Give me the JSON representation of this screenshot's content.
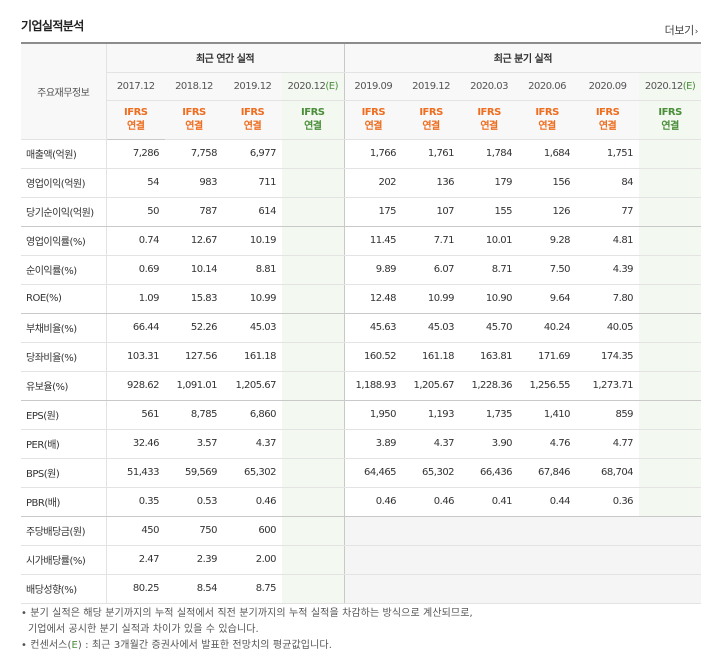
{
  "title": "기업실적분석",
  "more_label": "더보기",
  "more_arrow": "›",
  "header": {
    "row_label": "주요재무정보",
    "annual_group": "최근 연간 실적",
    "quarter_group": "최근 분기 실적",
    "annual_years": [
      "2017.12",
      "2018.12",
      "2019.12"
    ],
    "annual_est_year": "2020.12",
    "quarter_years": [
      "2019.09",
      "2019.12",
      "2020.03",
      "2020.06",
      "2020.09"
    ],
    "quarter_est_year": "2020.12",
    "est_mark": "(E)",
    "ifrs_top": "IFRS",
    "ifrs_bottom": "연결"
  },
  "rows": [
    {
      "label": "매출액(억원)",
      "annual": [
        "7,286",
        "7,758",
        "6,977",
        ""
      ],
      "quarter": [
        "1,766",
        "1,761",
        "1,784",
        "1,684",
        "1,751",
        ""
      ]
    },
    {
      "label": "영업이익(억원)",
      "annual": [
        "54",
        "983",
        "711",
        ""
      ],
      "quarter": [
        "202",
        "136",
        "179",
        "156",
        "84",
        ""
      ]
    },
    {
      "label": "당기순이익(억원)",
      "annual": [
        "50",
        "787",
        "614",
        ""
      ],
      "quarter": [
        "175",
        "107",
        "155",
        "126",
        "77",
        ""
      ]
    },
    {
      "label": "영업이익률(%)",
      "annual": [
        "0.74",
        "12.67",
        "10.19",
        ""
      ],
      "quarter": [
        "11.45",
        "7.71",
        "10.01",
        "9.28",
        "4.81",
        ""
      ]
    },
    {
      "label": "순이익률(%)",
      "annual": [
        "0.69",
        "10.14",
        "8.81",
        ""
      ],
      "quarter": [
        "9.89",
        "6.07",
        "8.71",
        "7.50",
        "4.39",
        ""
      ]
    },
    {
      "label": "ROE(%)",
      "annual": [
        "1.09",
        "15.83",
        "10.99",
        ""
      ],
      "quarter": [
        "12.48",
        "10.99",
        "10.90",
        "9.64",
        "7.80",
        ""
      ]
    },
    {
      "label": "부채비율(%)",
      "annual": [
        "66.44",
        "52.26",
        "45.03",
        ""
      ],
      "quarter": [
        "45.63",
        "45.03",
        "45.70",
        "40.24",
        "40.05",
        ""
      ]
    },
    {
      "label": "당좌비율(%)",
      "annual": [
        "103.31",
        "127.56",
        "161.18",
        ""
      ],
      "quarter": [
        "160.52",
        "161.18",
        "163.81",
        "171.69",
        "174.35",
        ""
      ]
    },
    {
      "label": "유보율(%)",
      "annual": [
        "928.62",
        "1,091.01",
        "1,205.67",
        ""
      ],
      "quarter": [
        "1,188.93",
        "1,205.67",
        "1,228.36",
        "1,256.55",
        "1,273.71",
        ""
      ]
    },
    {
      "label": "EPS(원)",
      "annual": [
        "561",
        "8,785",
        "6,860",
        ""
      ],
      "quarter": [
        "1,950",
        "1,193",
        "1,735",
        "1,410",
        "859",
        ""
      ]
    },
    {
      "label": "PER(배)",
      "annual": [
        "32.46",
        "3.57",
        "4.37",
        ""
      ],
      "quarter": [
        "3.89",
        "4.37",
        "3.90",
        "4.76",
        "4.77",
        ""
      ]
    },
    {
      "label": "BPS(원)",
      "annual": [
        "51,433",
        "59,569",
        "65,302",
        ""
      ],
      "quarter": [
        "64,465",
        "65,302",
        "66,436",
        "67,846",
        "68,704",
        ""
      ]
    },
    {
      "label": "PBR(배)",
      "annual": [
        "0.35",
        "0.53",
        "0.46",
        ""
      ],
      "quarter": [
        "0.46",
        "0.46",
        "0.41",
        "0.44",
        "0.36",
        ""
      ]
    },
    {
      "label": "주당배당금(원)",
      "annual": [
        "450",
        "750",
        "600",
        ""
      ],
      "quarter": [
        "",
        "",
        "",
        "",
        "",
        ""
      ]
    },
    {
      "label": "시가배당률(%)",
      "annual": [
        "2.47",
        "2.39",
        "2.00",
        ""
      ],
      "quarter": [
        "",
        "",
        "",
        "",
        "",
        ""
      ]
    },
    {
      "label": "배당성향(%)",
      "annual": [
        "80.25",
        "8.54",
        "8.75",
        ""
      ],
      "quarter": [
        "",
        "",
        "",
        "",
        "",
        ""
      ]
    }
  ],
  "notes": {
    "line1": "• 분기 실적은 해당 분기까지의 누적 실적에서 직전 분기까지의 누적 실적을 차감하는 방식으로 계산되므로,",
    "line2": "기업에서 공시한 분기 실적과 차이가 있을 수 있습니다.",
    "line3_prefix": "• 컨센서스(",
    "line3_mark": "E",
    "line3_suffix": ") : 최근 3개월간 증권사에서 발표한 전망치의 평균값입니다."
  }
}
